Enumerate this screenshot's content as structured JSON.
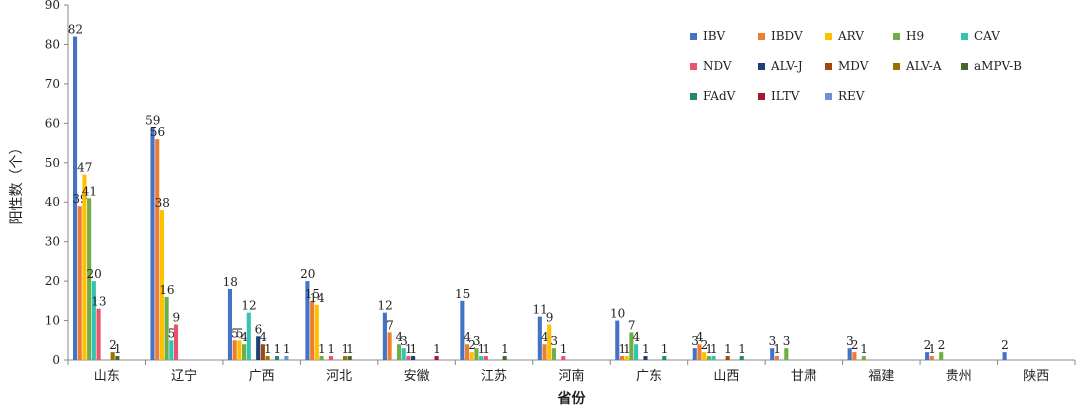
{
  "chart_data": {
    "type": "bar",
    "xlabel": "省份",
    "ylabel": "阳性数（个）",
    "ylim": [
      0,
      90
    ],
    "yticks": [
      0,
      10,
      20,
      30,
      40,
      50,
      60,
      70,
      80,
      90
    ],
    "grid": false,
    "legend_position": "top-right",
    "categories": [
      "山东",
      "辽宁",
      "广西",
      "河北",
      "安徽",
      "江苏",
      "河南",
      "广东",
      "山西",
      "甘肃",
      "福建",
      "贵州",
      "陕西"
    ],
    "series": [
      {
        "name": "IBV",
        "color": "#4472C4",
        "values": [
          82,
          59,
          18,
          20,
          12,
          15,
          11,
          10,
          3,
          3,
          3,
          2,
          2
        ]
      },
      {
        "name": "IBDV",
        "color": "#ED7D31",
        "values": [
          39,
          56,
          5,
          15,
          7,
          4,
          4,
          1,
          4,
          1,
          2,
          1,
          0
        ]
      },
      {
        "name": "ARV",
        "color": "#FFC000",
        "values": [
          47,
          38,
          5,
          14,
          0,
          2,
          9,
          1,
          2,
          0,
          0,
          0,
          0
        ]
      },
      {
        "name": "H9",
        "color": "#70AD47",
        "values": [
          41,
          16,
          4,
          1,
          4,
          3,
          3,
          7,
          1,
          3,
          1,
          2,
          0
        ]
      },
      {
        "name": "CAV",
        "color": "#33C3B3",
        "values": [
          20,
          5,
          12,
          0,
          3,
          1,
          0,
          4,
          1,
          0,
          0,
          0,
          0
        ]
      },
      {
        "name": "NDV",
        "color": "#E8546B",
        "values": [
          13,
          9,
          0,
          1,
          1,
          1,
          1,
          0,
          0,
          0,
          0,
          0,
          0
        ]
      },
      {
        "name": "ALV-J",
        "color": "#1F3F7A",
        "values": [
          0,
          0,
          6,
          0,
          1,
          0,
          0,
          1,
          0,
          0,
          0,
          0,
          0
        ]
      },
      {
        "name": "MDV",
        "color": "#9E480E",
        "values": [
          0,
          0,
          4,
          0,
          0,
          0,
          0,
          0,
          1,
          0,
          0,
          0,
          0
        ]
      },
      {
        "name": "ALV-A",
        "color": "#997300",
        "values": [
          2,
          0,
          1,
          1,
          0,
          0,
          0,
          0,
          0,
          0,
          0,
          0,
          0
        ]
      },
      {
        "name": "aMPV-B",
        "color": "#43682B",
        "values": [
          1,
          0,
          0,
          1,
          0,
          1,
          0,
          0,
          0,
          0,
          0,
          0,
          0
        ]
      },
      {
        "name": "FAdV",
        "color": "#1F8A70",
        "values": [
          0,
          0,
          1,
          0,
          0,
          0,
          0,
          1,
          1,
          0,
          0,
          0,
          0
        ]
      },
      {
        "name": "ILTV",
        "color": "#A5172F",
        "values": [
          0,
          0,
          0,
          0,
          1,
          0,
          0,
          0,
          0,
          0,
          0,
          0,
          0
        ]
      },
      {
        "name": "REV",
        "color": "#6F8FD6",
        "values": [
          0,
          0,
          1,
          0,
          0,
          0,
          0,
          0,
          0,
          0,
          0,
          0,
          0
        ]
      }
    ]
  }
}
